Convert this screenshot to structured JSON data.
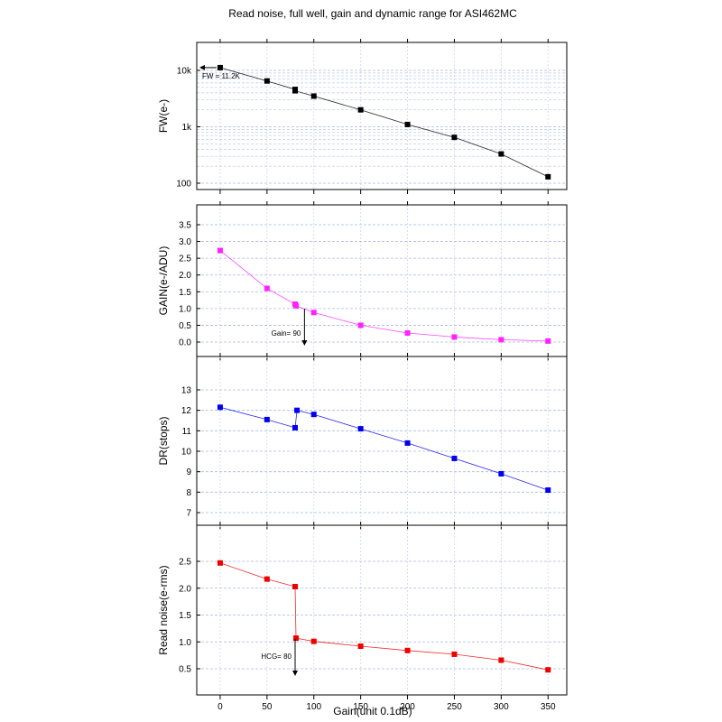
{
  "figure": {
    "title": "Read noise, full well, gain and dynamic range for ASI462MC",
    "xlabel": "Gain(unit 0.1dB)"
  },
  "chart_data": [
    {
      "type": "scatter",
      "ylabel": "FW(e-)",
      "yscale": "log",
      "xlim": [
        -25,
        370
      ],
      "ylim": [
        100,
        13000
      ],
      "x_ticks": [
        0,
        50,
        100,
        150,
        200,
        250,
        300,
        350
      ],
      "y_ticks": [
        100,
        1000,
        10000
      ],
      "y_tick_labels": [
        "100",
        "1k",
        "10k"
      ],
      "grid": true,
      "color": "#000000",
      "series": [
        {
          "x": [
            0,
            50,
            80,
            80,
            100,
            150,
            200,
            250,
            300,
            350
          ],
          "y": [
            11200,
            6500,
            4600,
            4350,
            3500,
            2000,
            1100,
            650,
            330,
            130
          ]
        }
      ],
      "annotation": {
        "text": "FW = 11.2K",
        "x": 0,
        "y": 11200,
        "arrow": "left"
      }
    },
    {
      "type": "scatter",
      "ylabel": "GAIN(e-/ADU)",
      "xlim": [
        -25,
        370
      ],
      "ylim": [
        -0.2,
        3.5
      ],
      "x_ticks": [
        0,
        50,
        100,
        150,
        200,
        250,
        300,
        350
      ],
      "y_ticks": [
        0.0,
        0.5,
        1.0,
        1.5,
        2.0,
        2.5,
        3.0,
        3.5
      ],
      "y_tick_labels": [
        "0.0",
        "0.5",
        "1.0",
        "1.5",
        "2.0",
        "2.5",
        "3.0",
        "3.5"
      ],
      "grid": true,
      "color": "#ff22ff",
      "series": [
        {
          "x": [
            0,
            50,
            80,
            81,
            100,
            150,
            200,
            250,
            300,
            350
          ],
          "y": [
            2.73,
            1.6,
            1.13,
            1.08,
            0.88,
            0.5,
            0.27,
            0.15,
            0.07,
            0.03
          ]
        }
      ],
      "annotation": {
        "text": "Gain= 90",
        "x": 90,
        "y": -0.1,
        "arrow": "down"
      }
    },
    {
      "type": "scatter",
      "ylabel": "DR(stops)",
      "xlim": [
        -25,
        370
      ],
      "ylim": [
        7,
        13
      ],
      "x_ticks": [
        0,
        50,
        100,
        150,
        200,
        250,
        300,
        350
      ],
      "y_ticks": [
        7,
        8,
        9,
        10,
        11,
        12,
        13
      ],
      "y_tick_labels": [
        "7",
        "8",
        "9",
        "10",
        "11",
        "12",
        "13"
      ],
      "grid": true,
      "color": "#0000ee",
      "series": [
        {
          "x": [
            0,
            50,
            80,
            82,
            100,
            150,
            200,
            250,
            300,
            350
          ],
          "y": [
            12.15,
            11.55,
            11.15,
            12.0,
            11.8,
            11.1,
            10.4,
            9.65,
            8.9,
            8.1
          ]
        }
      ]
    },
    {
      "type": "scatter",
      "ylabel": "Read noise(e-rms)",
      "xlim": [
        -25,
        370
      ],
      "ylim": [
        0.4,
        2.65
      ],
      "x_ticks": [
        0,
        50,
        100,
        150,
        200,
        250,
        300,
        350
      ],
      "x_tick_labels": [
        "0",
        "50",
        "100",
        "150",
        "200",
        "250",
        "300",
        "350"
      ],
      "y_ticks": [
        0.5,
        1.0,
        1.5,
        2.0,
        2.5
      ],
      "y_tick_labels": [
        "0.5",
        "1.0",
        "1.5",
        "2.0",
        "2.5"
      ],
      "grid": true,
      "color": "#ee0000",
      "series": [
        {
          "x": [
            0,
            50,
            80,
            81,
            100,
            150,
            200,
            250,
            300,
            350
          ],
          "y": [
            2.47,
            2.17,
            2.03,
            1.07,
            1.01,
            0.92,
            0.84,
            0.77,
            0.66,
            0.48
          ]
        }
      ],
      "annotation": {
        "text": "HCG= 80",
        "x": 80,
        "y": 0.4,
        "arrow": "down"
      }
    }
  ]
}
